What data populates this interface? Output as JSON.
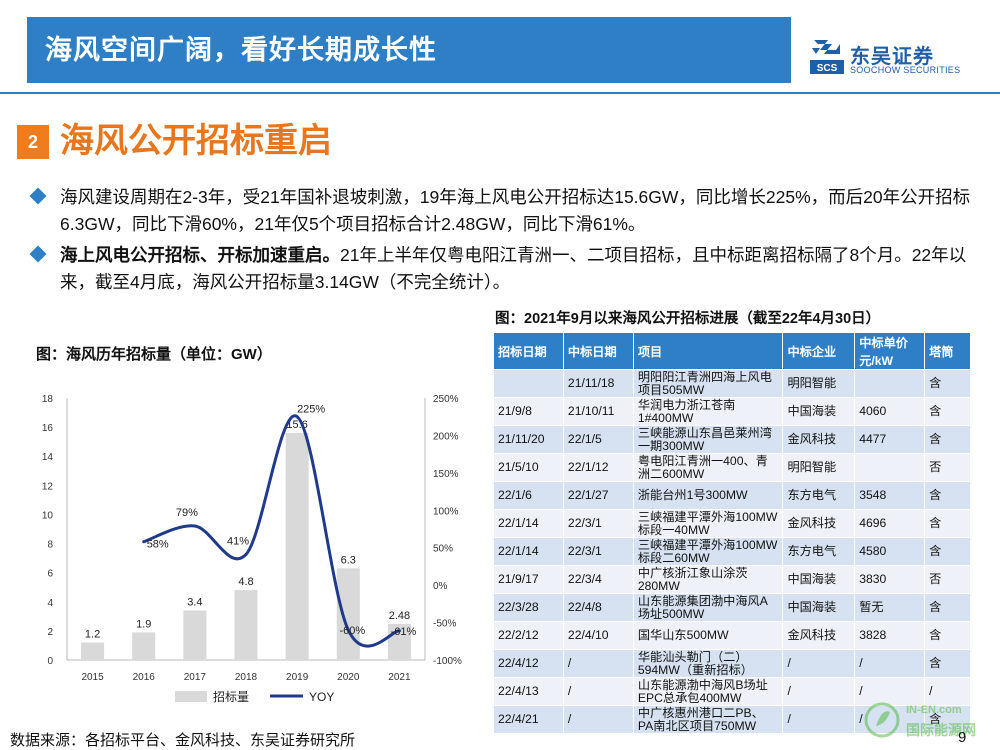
{
  "header": {
    "title": "海风空间广阔，看好长期成长性"
  },
  "logo": {
    "mark_text": "SCS",
    "cn": "东吴证券",
    "en": "SOOCHOW SECURITIES"
  },
  "section": {
    "number": "2",
    "title": "海风公开招标重启"
  },
  "bullets": [
    {
      "bold": "",
      "text": "海风建设周期在2-3年，受21年国补退坡刺激，19年海上风电公开招标达15.6GW，同比增长225%，而后20年公开招标6.3GW，同比下滑60%，21年仅5个项目招标合计2.48GW，同比下滑61%。"
    },
    {
      "bold": "海上风电公开招标、开标加速重启。",
      "text": "21年上半年仅粤电阳江青洲一、二项目招标，且中标距离招标隔了8个月。22年以来，截至4月底，海风公开招标量3.14GW（不完全统计）。"
    }
  ],
  "chart_title": "图：海风历年招标量（单位：GW）",
  "chart_data": {
    "type": "bar",
    "categories": [
      "2015",
      "2016",
      "2017",
      "2018",
      "2019",
      "2020",
      "2021"
    ],
    "series": [
      {
        "name": "招标量",
        "type": "bar",
        "axis": "left",
        "values": [
          1.2,
          1.9,
          3.4,
          4.8,
          15.6,
          6.3,
          2.48
        ],
        "labels": [
          "1.2",
          "1.9",
          "3.4",
          "4.8",
          "15.6",
          "6.3",
          "2.48"
        ],
        "color": "#d9d9d9"
      },
      {
        "name": "YOY",
        "type": "line",
        "axis": "right",
        "values": [
          null,
          58,
          79,
          41,
          225,
          -60,
          -61
        ],
        "labels": [
          "",
          "58%",
          "79%",
          "41%",
          "225%",
          "-60%",
          "-61%"
        ],
        "color": "#1f3a8a"
      }
    ],
    "ylim": [
      0,
      18
    ],
    "yticks": [
      "0",
      "2",
      "4",
      "6",
      "8",
      "10",
      "12",
      "14",
      "16",
      "18"
    ],
    "y2lim": [
      -100,
      250
    ],
    "y2ticks": [
      "-100%",
      "-50%",
      "0%",
      "50%",
      "100%",
      "150%",
      "200%",
      "250%"
    ],
    "legend": [
      "招标量",
      "YOY"
    ],
    "legend_position": "bottom"
  },
  "table": {
    "title": "图：2021年9月以来海风公开招标进展（截至22年4月30日）",
    "headers": [
      "招标日期",
      "中标日期",
      "项目",
      "中标企业",
      "中标单价元/kW",
      "塔筒"
    ],
    "rows": [
      [
        "",
        "21/11/18",
        "明阳阳江青洲四海上风电项目505MW",
        "明阳智能",
        "",
        "含"
      ],
      [
        "21/9/8",
        "21/10/11",
        "华润电力浙江苍南1#400MW",
        "中国海装",
        "4060",
        "含"
      ],
      [
        "21/11/20",
        "22/1/5",
        "三峡能源山东昌邑莱州湾一期300MW",
        "金风科技",
        "4477",
        "含"
      ],
      [
        "21/5/10",
        "22/1/12",
        "粤电阳江青洲一400、青洲二600MW",
        "明阳智能",
        "",
        "否"
      ],
      [
        "22/1/6",
        "22/1/27",
        "浙能台州1号300MW",
        "东方电气",
        "3548",
        "含"
      ],
      [
        "22/1/14",
        "22/3/1",
        "三峡福建平潭外海100MW标段一40MW",
        "金风科技",
        "4696",
        "含"
      ],
      [
        "22/1/14",
        "22/3/1",
        "三峡福建平潭外海100MW标段二60MW",
        "东方电气",
        "4580",
        "含"
      ],
      [
        "21/9/17",
        "22/3/4",
        "中广核浙江象山涂茨280MW",
        "中国海装",
        "3830",
        "否"
      ],
      [
        "22/3/28",
        "22/4/8",
        "山东能源集团渤中海风A场址500MW",
        "中国海装",
        "暂无",
        "含"
      ],
      [
        "22/2/12",
        "22/4/10",
        "国华山东500MW",
        "金风科技",
        "3828",
        "含"
      ],
      [
        "22/4/12",
        "/",
        "华能汕头勒门（二）594MW（重新招标）",
        "/",
        "/",
        "含"
      ],
      [
        "22/4/13",
        "/",
        "山东能源渤中海风B场址EPC总承包400MW",
        "/",
        "/",
        "/"
      ],
      [
        "22/4/21",
        "/",
        "中广核惠州港口二PB、PA南北区项目750MW",
        "/",
        "/",
        "含"
      ]
    ]
  },
  "footer": {
    "source": "数据来源：各招标平台、金风科技、东吴证券研究所",
    "page": "9"
  },
  "watermark": {
    "en": "IN-EN.com",
    "cn": "国际能源网"
  },
  "colors": {
    "header_blue": "#2e7fc6",
    "section_orange": "#e8761c",
    "table_row_odd": "#d6e2f1",
    "table_row_even": "#eef2f8",
    "bar": "#d9d9d9",
    "line": "#1f3a8a"
  }
}
